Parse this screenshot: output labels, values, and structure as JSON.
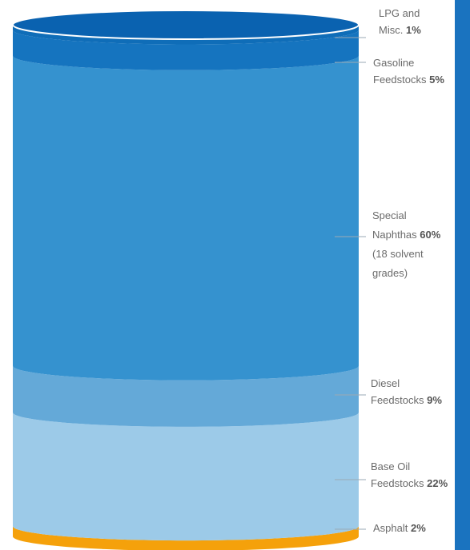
{
  "chart_data": {
    "type": "bar",
    "categories": [
      "LPG and Misc.",
      "Gasoline Feedstocks",
      "Special Naphthas",
      "Diesel Feedstocks",
      "Base Oil Feedstocks",
      "Asphalt"
    ],
    "values": [
      1,
      5,
      60,
      9,
      22,
      2
    ],
    "value_labels": [
      "1%",
      "5%",
      "60%",
      "9%",
      "22%",
      "2%"
    ],
    "title": "",
    "xlabel": "",
    "ylabel": "",
    "series": [
      {
        "category": "LPG and Misc.",
        "value": 1,
        "color": "#0f6db8"
      },
      {
        "category": "Gasoline Feedstocks",
        "value": 5,
        "color": "#1574bf"
      },
      {
        "category": "Special Naphthas",
        "value": 60,
        "color": "#3592cf"
      },
      {
        "category": "Diesel Feedstocks",
        "value": 9,
        "color": "#64a9d8"
      },
      {
        "category": "Base Oil Feedstocks",
        "value": 22,
        "color": "#9ccae8"
      },
      {
        "category": "Asphalt",
        "value": 2,
        "color": "#f5a10b"
      }
    ],
    "cylinder_top_color": "#0a62b0",
    "accent_bar_color": "#1a73bf"
  },
  "labels": {
    "lpg": {
      "line1": "LPG and",
      "line2": "Misc.",
      "value": "1%"
    },
    "gasoline": {
      "line1": "Gasoline",
      "line2": "Feedstocks",
      "value": "5%"
    },
    "naphthas": {
      "line1": "Special",
      "line2": "Naphthas",
      "value": "60%",
      "line3": "(18 solvent",
      "line4": "grades)"
    },
    "diesel": {
      "line1": "Diesel",
      "line2": "Feedstocks",
      "value": "9%"
    },
    "baseoil": {
      "line1": "Base Oil",
      "line2": "Feedstocks",
      "value": "22%"
    },
    "asphalt": {
      "line1": "Asphalt",
      "value": "2%"
    }
  }
}
